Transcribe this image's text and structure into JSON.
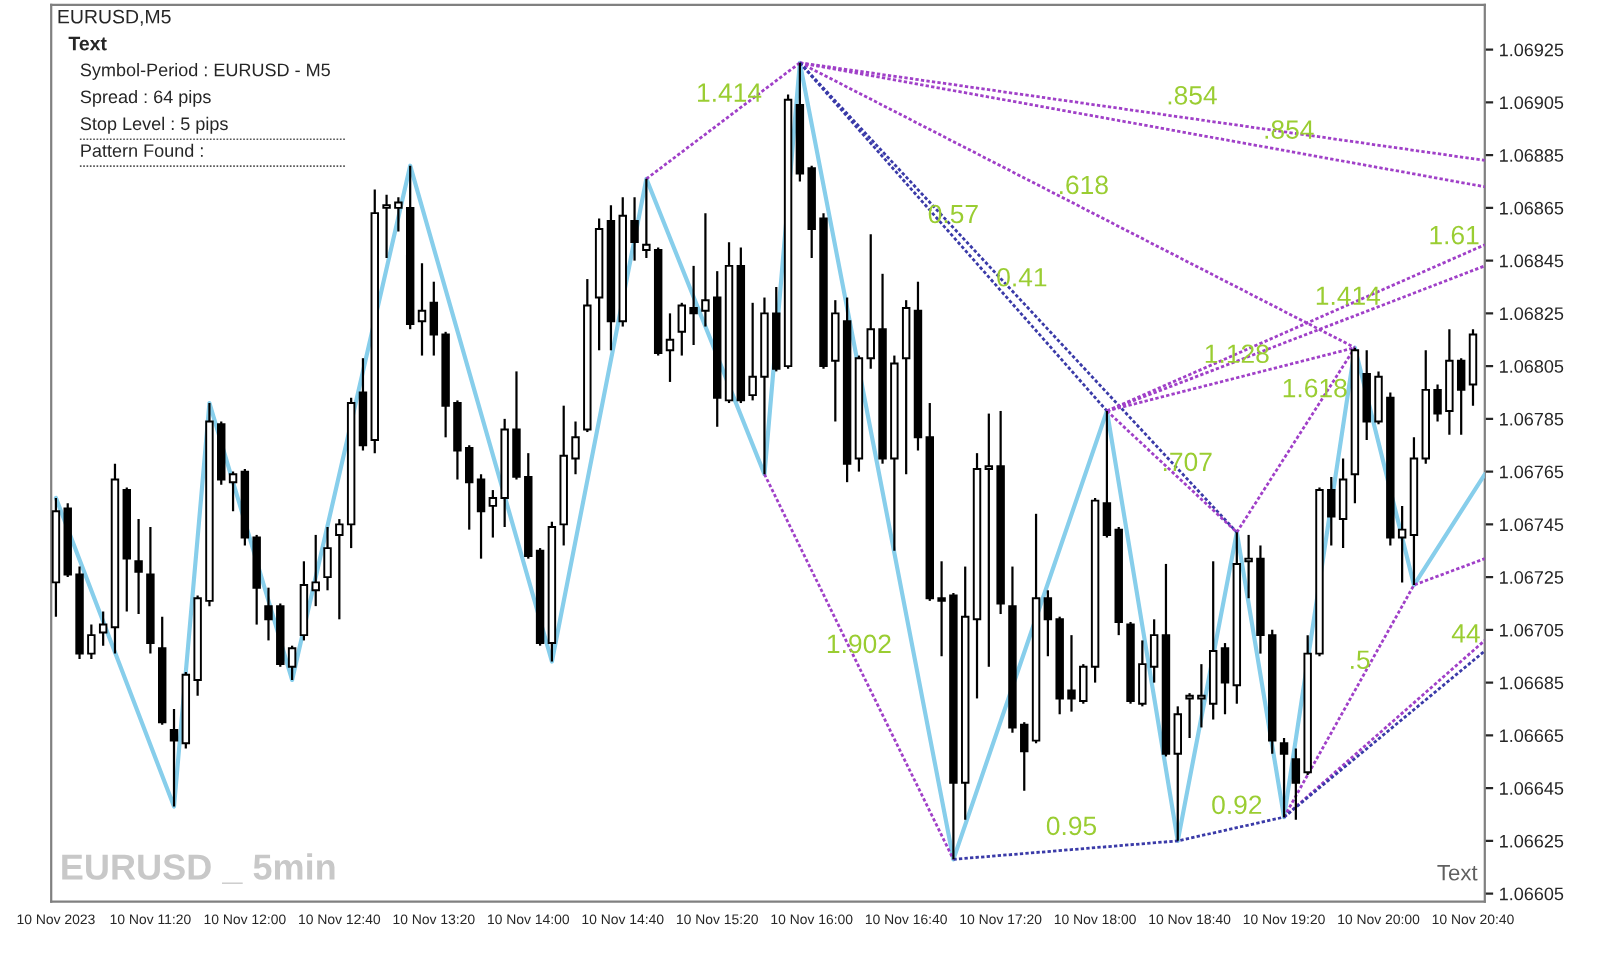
{
  "chart_data": {
    "type": "candlestick",
    "title": "EURUSD,M5",
    "x": [
      "2023-11-10T10:40",
      "2023-11-10T10:45",
      "2023-11-10T10:50",
      "2023-11-10T10:55",
      "2023-11-10T11:00",
      "2023-11-10T11:05",
      "2023-11-10T11:10",
      "2023-11-10T11:15",
      "2023-11-10T11:20",
      "2023-11-10T11:25",
      "2023-11-10T11:30",
      "2023-11-10T11:35",
      "2023-11-10T11:40",
      "2023-11-10T11:45",
      "2023-11-10T11:50",
      "2023-11-10T11:55",
      "2023-11-10T12:00",
      "2023-11-10T12:05",
      "2023-11-10T12:10",
      "2023-11-10T12:15",
      "2023-11-10T12:20",
      "2023-11-10T12:25",
      "2023-11-10T12:30",
      "2023-11-10T12:35",
      "2023-11-10T12:40",
      "2023-11-10T12:45",
      "2023-11-10T12:50",
      "2023-11-10T12:55",
      "2023-11-10T13:00",
      "2023-11-10T13:05",
      "2023-11-10T13:10",
      "2023-11-10T13:15",
      "2023-11-10T13:20",
      "2023-11-10T13:25",
      "2023-11-10T13:30",
      "2023-11-10T13:35",
      "2023-11-10T13:40",
      "2023-11-10T13:45",
      "2023-11-10T13:50",
      "2023-11-10T13:55",
      "2023-11-10T14:00",
      "2023-11-10T14:05",
      "2023-11-10T14:10",
      "2023-11-10T14:15",
      "2023-11-10T14:20",
      "2023-11-10T14:25",
      "2023-11-10T14:30",
      "2023-11-10T14:35",
      "2023-11-10T14:40",
      "2023-11-10T14:45",
      "2023-11-10T14:50",
      "2023-11-10T14:55",
      "2023-11-10T15:00",
      "2023-11-10T15:05",
      "2023-11-10T15:10",
      "2023-11-10T15:15",
      "2023-11-10T15:20",
      "2023-11-10T15:25",
      "2023-11-10T15:30",
      "2023-11-10T15:35",
      "2023-11-10T15:40",
      "2023-11-10T15:45",
      "2023-11-10T15:50",
      "2023-11-10T15:55",
      "2023-11-10T16:00",
      "2023-11-10T16:05",
      "2023-11-10T16:10",
      "2023-11-10T16:15",
      "2023-11-10T16:20",
      "2023-11-10T16:25",
      "2023-11-10T16:30",
      "2023-11-10T16:35",
      "2023-11-10T16:40",
      "2023-11-10T16:45",
      "2023-11-10T16:50",
      "2023-11-10T16:55",
      "2023-11-10T17:00",
      "2023-11-10T17:05",
      "2023-11-10T17:10",
      "2023-11-10T17:15",
      "2023-11-10T17:20",
      "2023-11-10T17:25",
      "2023-11-10T17:30",
      "2023-11-10T17:35",
      "2023-11-10T17:40",
      "2023-11-10T17:45",
      "2023-11-10T17:50",
      "2023-11-10T17:55",
      "2023-11-10T18:00",
      "2023-11-10T18:05",
      "2023-11-10T18:10",
      "2023-11-10T18:15",
      "2023-11-10T18:20",
      "2023-11-10T18:25",
      "2023-11-10T18:30",
      "2023-11-10T18:35",
      "2023-11-10T18:40",
      "2023-11-10T18:45",
      "2023-11-10T18:50",
      "2023-11-10T18:55",
      "2023-11-10T19:00",
      "2023-11-10T19:05",
      "2023-11-10T19:10",
      "2023-11-10T19:15",
      "2023-11-10T19:20",
      "2023-11-10T19:25",
      "2023-11-10T19:30",
      "2023-11-10T19:35",
      "2023-11-10T19:40",
      "2023-11-10T19:45",
      "2023-11-10T19:50",
      "2023-11-10T19:55",
      "2023-11-10T20:00",
      "2023-11-10T20:05",
      "2023-11-10T20:10",
      "2023-11-10T20:15",
      "2023-11-10T20:20",
      "2023-11-10T20:25",
      "2023-11-10T20:30",
      "2023-11-10T20:35",
      "2023-11-10T20:40"
    ],
    "ohlc": [
      [
        1.06723,
        1.06755,
        1.0671,
        1.0675
      ],
      [
        1.06751,
        1.06753,
        1.06725,
        1.06726
      ],
      [
        1.06726,
        1.06729,
        1.06694,
        1.06696
      ],
      [
        1.06696,
        1.06707,
        1.06694,
        1.06703
      ],
      [
        1.06704,
        1.06712,
        1.06699,
        1.06707
      ],
      [
        1.06706,
        1.06768,
        1.06696,
        1.06762
      ],
      [
        1.06758,
        1.06759,
        1.06712,
        1.06732
      ],
      [
        1.06731,
        1.06747,
        1.06711,
        1.06727
      ],
      [
        1.06726,
        1.06744,
        1.06696,
        1.067
      ],
      [
        1.06698,
        1.0671,
        1.06669,
        1.0667
      ],
      [
        1.06667,
        1.06675,
        1.06638,
        1.06663
      ],
      [
        1.06662,
        1.06689,
        1.0666,
        1.06688
      ],
      [
        1.06686,
        1.06718,
        1.0668,
        1.06717
      ],
      [
        1.06716,
        1.06791,
        1.06714,
        1.06784
      ],
      [
        1.06783,
        1.06784,
        1.0676,
        1.06762
      ],
      [
        1.06761,
        1.06765,
        1.0675,
        1.06764
      ],
      [
        1.06765,
        1.06766,
        1.06737,
        1.0674
      ],
      [
        1.0674,
        1.06741,
        1.06707,
        1.06721
      ],
      [
        1.06714,
        1.06721,
        1.06701,
        1.06709
      ],
      [
        1.06714,
        1.06715,
        1.06691,
        1.06692
      ],
      [
        1.06691,
        1.06699,
        1.06686,
        1.06698
      ],
      [
        1.06703,
        1.06731,
        1.06701,
        1.06722
      ],
      [
        1.0672,
        1.06741,
        1.06714,
        1.06723
      ],
      [
        1.06725,
        1.06744,
        1.0672,
        1.06736
      ],
      [
        1.06741,
        1.06747,
        1.06709,
        1.06745
      ],
      [
        1.06745,
        1.06793,
        1.06736,
        1.06791
      ],
      [
        1.06795,
        1.06808,
        1.06773,
        1.06775
      ],
      [
        1.06777,
        1.06872,
        1.06772,
        1.06863
      ],
      [
        1.06865,
        1.0687,
        1.06846,
        1.06866
      ],
      [
        1.06865,
        1.06869,
        1.06856,
        1.06867
      ],
      [
        1.06865,
        1.06881,
        1.06819,
        1.06821
      ],
      [
        1.06822,
        1.06844,
        1.06809,
        1.06826
      ],
      [
        1.06829,
        1.06837,
        1.06809,
        1.06817
      ],
      [
        1.06817,
        1.06818,
        1.06778,
        1.0679
      ],
      [
        1.06791,
        1.06792,
        1.06762,
        1.06773
      ],
      [
        1.06774,
        1.06775,
        1.06743,
        1.06761
      ],
      [
        1.06762,
        1.06764,
        1.06732,
        1.0675
      ],
      [
        1.06752,
        1.06758,
        1.0674,
        1.06755
      ],
      [
        1.06755,
        1.06785,
        1.06744,
        1.06781
      ],
      [
        1.06781,
        1.06803,
        1.06762,
        1.06763
      ],
      [
        1.06763,
        1.06772,
        1.06732,
        1.06733
      ],
      [
        1.06735,
        1.06736,
        1.06699,
        1.067
      ],
      [
        1.067,
        1.06746,
        1.06693,
        1.06744
      ],
      [
        1.06745,
        1.0679,
        1.06737,
        1.06771
      ],
      [
        1.0677,
        1.06784,
        1.06764,
        1.06778
      ],
      [
        1.06781,
        1.06838,
        1.0678,
        1.06828
      ],
      [
        1.06831,
        1.06861,
        1.06811,
        1.06857
      ],
      [
        1.0686,
        1.06866,
        1.06811,
        1.06822
      ],
      [
        1.06822,
        1.06869,
        1.0682,
        1.06862
      ],
      [
        1.0686,
        1.06869,
        1.06845,
        1.06852
      ],
      [
        1.06849,
        1.06876,
        1.06846,
        1.06851
      ],
      [
        1.06849,
        1.0685,
        1.06809,
        1.0681
      ],
      [
        1.06811,
        1.06825,
        1.06799,
        1.06815
      ],
      [
        1.06818,
        1.06829,
        1.06809,
        1.06828
      ],
      [
        1.06827,
        1.06843,
        1.06813,
        1.06825
      ],
      [
        1.06826,
        1.06863,
        1.0682,
        1.0683
      ],
      [
        1.06831,
        1.06841,
        1.06782,
        1.06793
      ],
      [
        1.06792,
        1.06852,
        1.06791,
        1.06843
      ],
      [
        1.06843,
        1.0685,
        1.06791,
        1.06792
      ],
      [
        1.06794,
        1.06829,
        1.06792,
        1.06801
      ],
      [
        1.06801,
        1.06831,
        1.06764,
        1.06825
      ],
      [
        1.06825,
        1.06835,
        1.06803,
        1.06804
      ],
      [
        1.06805,
        1.06908,
        1.06804,
        1.06906
      ],
      [
        1.06904,
        1.0692,
        1.06875,
        1.06878
      ],
      [
        1.0688,
        1.06881,
        1.06846,
        1.06857
      ],
      [
        1.06861,
        1.06863,
        1.06804,
        1.06805
      ],
      [
        1.06807,
        1.0683,
        1.06784,
        1.06825
      ],
      [
        1.06822,
        1.06831,
        1.06761,
        1.06768
      ],
      [
        1.0677,
        1.06809,
        1.06765,
        1.06808
      ],
      [
        1.06808,
        1.06855,
        1.06804,
        1.06819
      ],
      [
        1.06819,
        1.0684,
        1.06768,
        1.0677
      ],
      [
        1.0677,
        1.06809,
        1.06735,
        1.06806
      ],
      [
        1.06808,
        1.0683,
        1.06764,
        1.06827
      ],
      [
        1.06826,
        1.06837,
        1.06773,
        1.06778
      ],
      [
        1.06778,
        1.06791,
        1.06716,
        1.06717
      ],
      [
        1.06717,
        1.06731,
        1.06695,
        1.06716
      ],
      [
        1.06718,
        1.06719,
        1.06618,
        1.06647
      ],
      [
        1.06647,
        1.06729,
        1.06633,
        1.0671
      ],
      [
        1.06709,
        1.06772,
        1.06679,
        1.06766
      ],
      [
        1.06766,
        1.06787,
        1.06691,
        1.06767
      ],
      [
        1.06767,
        1.06788,
        1.06711,
        1.06715
      ],
      [
        1.06714,
        1.06729,
        1.06666,
        1.06668
      ],
      [
        1.06669,
        1.0667,
        1.06644,
        1.06659
      ],
      [
        1.06663,
        1.06749,
        1.06662,
        1.06717
      ],
      [
        1.06717,
        1.0672,
        1.06695,
        1.06709
      ],
      [
        1.06709,
        1.0671,
        1.06673,
        1.06679
      ],
      [
        1.06682,
        1.06703,
        1.06674,
        1.06679
      ],
      [
        1.06678,
        1.06692,
        1.06677,
        1.06691
      ],
      [
        1.06691,
        1.06755,
        1.06685,
        1.06754
      ],
      [
        1.06753,
        1.06788,
        1.0674,
        1.06741
      ],
      [
        1.06743,
        1.06744,
        1.06703,
        1.06708
      ],
      [
        1.06707,
        1.06708,
        1.06677,
        1.06678
      ],
      [
        1.06677,
        1.06701,
        1.06676,
        1.06692
      ],
      [
        1.06691,
        1.06709,
        1.06685,
        1.06703
      ],
      [
        1.06703,
        1.0673,
        1.06657,
        1.06658
      ],
      [
        1.06658,
        1.06676,
        1.06625,
        1.06673
      ],
      [
        1.06679,
        1.06681,
        1.06664,
        1.0668
      ],
      [
        1.06679,
        1.06692,
        1.06668,
        1.0668
      ],
      [
        1.06677,
        1.06731,
        1.06671,
        1.06697
      ],
      [
        1.06698,
        1.067,
        1.06673,
        1.06685
      ],
      [
        1.06684,
        1.06742,
        1.06677,
        1.0673
      ],
      [
        1.06731,
        1.06741,
        1.06717,
        1.06732
      ],
      [
        1.06732,
        1.06737,
        1.06696,
        1.06703
      ],
      [
        1.06703,
        1.06705,
        1.06658,
        1.06663
      ],
      [
        1.06662,
        1.06664,
        1.06634,
        1.06658
      ],
      [
        1.06656,
        1.0666,
        1.06633,
        1.06647
      ],
      [
        1.06651,
        1.06703,
        1.0665,
        1.06696
      ],
      [
        1.06696,
        1.06759,
        1.06695,
        1.06758
      ],
      [
        1.06758,
        1.06763,
        1.06737,
        1.06748
      ],
      [
        1.06747,
        1.0677,
        1.06736,
        1.06762
      ],
      [
        1.06764,
        1.06812,
        1.06753,
        1.06811
      ],
      [
        1.06802,
        1.06811,
        1.06777,
        1.06784
      ],
      [
        1.06784,
        1.06803,
        1.06783,
        1.06801
      ],
      [
        1.06793,
        1.06795,
        1.06737,
        1.0674
      ],
      [
        1.0674,
        1.06752,
        1.06723,
        1.06743
      ],
      [
        1.06741,
        1.06778,
        1.06722,
        1.0677
      ],
      [
        1.0677,
        1.06811,
        1.06768,
        1.06796
      ],
      [
        1.06796,
        1.06798,
        1.06784,
        1.06787
      ],
      [
        1.06788,
        1.06819,
        1.06779,
        1.06807
      ],
      [
        1.06807,
        1.06808,
        1.06779,
        1.06796
      ],
      [
        1.06798,
        1.06819,
        1.0679,
        1.06817
      ]
    ],
    "series": [
      {
        "type": "line",
        "color": "#87ceeb",
        "line_style": "solid",
        "x": [
          "2023-11-10T10:40",
          "2023-11-10T11:30",
          "2023-11-10T11:45",
          "2023-11-10T12:20",
          "2023-11-10T13:10",
          "2023-11-10T14:10",
          "2023-11-10T14:50",
          "2023-11-10T15:40",
          "2023-11-10T15:55",
          "2023-11-10T17:00",
          "2023-11-10T18:05",
          "2023-11-10T18:35",
          "2023-11-10T19:00",
          "2023-11-10T19:20",
          "2023-11-10T19:50",
          "2023-11-10T20:15",
          "2023-11-10T20:45"
        ],
        "values": [
          1.06755,
          1.06638,
          1.06791,
          1.06686,
          1.06881,
          1.06693,
          1.06876,
          1.06764,
          1.0692,
          1.06618,
          1.06788,
          1.06625,
          1.06742,
          1.06634,
          1.06812,
          1.06722,
          1.06764
        ]
      },
      {
        "type": "line",
        "color": "#a040c8",
        "line_style": "dotted",
        "x": [
          "2023-11-10T14:50",
          "2023-11-10T15:55"
        ],
        "values": [
          1.06876,
          1.0692
        ]
      },
      {
        "type": "line",
        "color": "#a040c8",
        "line_style": "dotted",
        "x": [
          "2023-11-10T15:55",
          "2023-11-10T20:45"
        ],
        "values": [
          1.0692,
          1.06883
        ]
      },
      {
        "type": "line",
        "color": "#a040c8",
        "line_style": "dotted",
        "x": [
          "2023-11-10T15:55",
          "2023-11-10T20:45"
        ],
        "values": [
          1.0692,
          1.06873
        ]
      },
      {
        "type": "line",
        "color": "#a040c8",
        "line_style": "dotted",
        "x": [
          "2023-11-10T15:55",
          "2023-11-10T19:50"
        ],
        "values": [
          1.0692,
          1.06812
        ]
      },
      {
        "type": "line",
        "color": "#3a3aa8",
        "line_style": "dotted",
        "x": [
          "2023-11-10T15:55",
          "2023-11-10T18:05"
        ],
        "values": [
          1.0692,
          1.06788
        ]
      },
      {
        "type": "line",
        "color": "#3a3aa8",
        "line_style": "dotted",
        "x": [
          "2023-11-10T15:55",
          "2023-11-10T19:00"
        ],
        "values": [
          1.0692,
          1.06742
        ]
      },
      {
        "type": "line",
        "color": "#a040c8",
        "line_style": "dotted",
        "x": [
          "2023-11-10T15:40",
          "2023-11-10T17:00"
        ],
        "values": [
          1.06764,
          1.06618
        ]
      },
      {
        "type": "line",
        "color": "#3a3aa8",
        "line_style": "dotted",
        "x": [
          "2023-11-10T17:00",
          "2023-11-10T18:35",
          "2023-11-10T19:20"
        ],
        "values": [
          1.06618,
          1.06625,
          1.06634
        ]
      },
      {
        "type": "line",
        "color": "#a040c8",
        "line_style": "dotted",
        "x": [
          "2023-11-10T18:05",
          "2023-11-10T20:45"
        ],
        "values": [
          1.06788,
          1.06851
        ]
      },
      {
        "type": "line",
        "color": "#a040c8",
        "line_style": "dotted",
        "x": [
          "2023-11-10T18:05",
          "2023-11-10T20:45"
        ],
        "values": [
          1.06788,
          1.06843
        ]
      },
      {
        "type": "line",
        "color": "#a040c8",
        "line_style": "dotted",
        "x": [
          "2023-11-10T18:05",
          "2023-11-10T19:50"
        ],
        "values": [
          1.06788,
          1.06812
        ]
      },
      {
        "type": "line",
        "color": "#a040c8",
        "line_style": "dotted",
        "x": [
          "2023-11-10T18:05",
          "2023-11-10T19:00"
        ],
        "values": [
          1.06788,
          1.06742
        ]
      },
      {
        "type": "line",
        "color": "#a040c8",
        "line_style": "dotted",
        "x": [
          "2023-11-10T19:00",
          "2023-11-10T19:50"
        ],
        "values": [
          1.06742,
          1.06812
        ]
      },
      {
        "type": "line",
        "color": "#a040c8",
        "line_style": "dotted",
        "x": [
          "2023-11-10T19:20",
          "2023-11-10T20:15",
          "2023-11-10T20:45"
        ],
        "values": [
          1.06634,
          1.06722,
          1.06732
        ]
      },
      {
        "type": "line",
        "color": "#a040c8",
        "line_style": "dotted",
        "x": [
          "2023-11-10T19:20",
          "2023-11-10T20:45"
        ],
        "values": [
          1.06634,
          1.06701
        ]
      },
      {
        "type": "line",
        "color": "#3a3aa8",
        "line_style": "dotted",
        "x": [
          "2023-11-10T19:20",
          "2023-11-10T20:45"
        ],
        "values": [
          1.06634,
          1.06697
        ]
      }
    ],
    "xlim": [
      "2023-11-10T10:38",
      "2023-11-10T20:45"
    ],
    "xticks": [
      {
        "value": "2023-11-10T10:40",
        "label": "10 Nov 2023"
      },
      {
        "value": "2023-11-10T11:20",
        "label": "10 Nov 11:20"
      },
      {
        "value": "2023-11-10T12:00",
        "label": "10 Nov 12:00"
      },
      {
        "value": "2023-11-10T12:40",
        "label": "10 Nov 12:40"
      },
      {
        "value": "2023-11-10T13:20",
        "label": "10 Nov 13:20"
      },
      {
        "value": "2023-11-10T14:00",
        "label": "10 Nov 14:00"
      },
      {
        "value": "2023-11-10T14:40",
        "label": "10 Nov 14:40"
      },
      {
        "value": "2023-11-10T15:20",
        "label": "10 Nov 15:20"
      },
      {
        "value": "2023-11-10T16:00",
        "label": "10 Nov 16:00"
      },
      {
        "value": "2023-11-10T16:40",
        "label": "10 Nov 16:40"
      },
      {
        "value": "2023-11-10T17:20",
        "label": "10 Nov 17:20"
      },
      {
        "value": "2023-11-10T18:00",
        "label": "10 Nov 18:00"
      },
      {
        "value": "2023-11-10T18:40",
        "label": "10 Nov 18:40"
      },
      {
        "value": "2023-11-10T19:20",
        "label": "10 Nov 19:20"
      },
      {
        "value": "2023-11-10T20:00",
        "label": "10 Nov 20:00"
      },
      {
        "value": "2023-11-10T20:40",
        "label": "10 Nov 20:40"
      }
    ],
    "ylim": [
      1.06602,
      1.06942
    ],
    "yticks": [
      1.06605,
      1.06625,
      1.06645,
      1.06665,
      1.06685,
      1.06705,
      1.06725,
      1.06745,
      1.06765,
      1.06785,
      1.06805,
      1.06825,
      1.06845,
      1.06865,
      1.06885,
      1.06905,
      1.06925
    ],
    "annotations": [
      "Text",
      "Symbol-Period : EURUSD - M5",
      "Spread : 64 pips",
      "Stop Level : 5 pips",
      "Pattern Found :",
      "EURUSD _ 5min",
      "Text",
      {
        "text": "1.414",
        "x": "2023-11-10T15:25",
        "y": 1.069
      },
      {
        "text": ".854",
        "x": "2023-11-10T18:41",
        "y": 1.06899
      },
      {
        "text": ".854",
        "x": "2023-11-10T19:22",
        "y": 1.06886
      },
      {
        "text": ".618",
        "x": "2023-11-10T17:55",
        "y": 1.06865
      },
      {
        "text": "0.57",
        "x": "2023-11-10T17:00",
        "y": 1.06854
      },
      {
        "text": "0.41",
        "x": "2023-11-10T17:29",
        "y": 1.0683
      },
      {
        "text": "1.128",
        "x": "2023-11-10T19:00",
        "y": 1.06801
      },
      {
        "text": "1.414",
        "x": "2023-11-10T19:47",
        "y": 1.06823
      },
      {
        "text": "1.61",
        "x": "2023-11-10T20:32",
        "y": 1.06846
      },
      {
        "text": ".707",
        "x": "2023-11-10T18:39",
        "y": 1.0676
      },
      {
        "text": "1.618",
        "x": "2023-11-10T19:33",
        "y": 1.06788
      },
      {
        "text": "1.902",
        "x": "2023-11-10T16:20",
        "y": 1.06691
      },
      {
        "text": "0.95",
        "x": "2023-11-10T17:50",
        "y": 1.06622
      },
      {
        "text": "0.92",
        "x": "2023-11-10T19:00",
        "y": 1.0663
      },
      {
        "text": ".5",
        "x": "2023-11-10T19:52",
        "y": 1.06685
      },
      {
        "text": "44",
        "x": "2023-11-10T20:37",
        "y": 1.06695
      }
    ]
  }
}
